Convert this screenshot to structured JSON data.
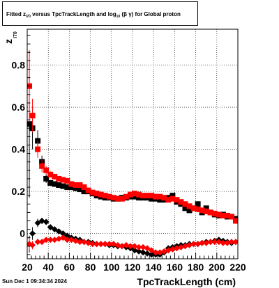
{
  "title": {
    "p1": "Fitted  z",
    "s1": "I70",
    "p2": "  versus TpcTrackLength and log",
    "s2": "10",
    "p3": " (β  γ) for Global proton"
  },
  "date_stamp": "Sun Dec  1 09:34:34 2024",
  "chart_data": {
    "type": "scatter",
    "title": "Fitted  zI70  versus TpcTrackLength and log10 (β  γ) for Global proton",
    "xlabel": "TpcTrackLength (cm)",
    "ylabel": "z",
    "ylabel_sub": "I70",
    "xlim": [
      20,
      220
    ],
    "ylim": [
      -0.12,
      0.97
    ],
    "grid": true,
    "x_ticks": [
      20,
      40,
      60,
      80,
      100,
      120,
      140,
      160,
      180,
      200,
      220
    ],
    "x_tick_labels": [
      "20",
      "40",
      "60",
      "80",
      "100",
      "120",
      "140",
      "160",
      "180",
      "200",
      "220"
    ],
    "y_ticks": [
      0,
      0.2,
      0.4,
      0.6,
      0.8
    ],
    "y_tick_labels": [
      "0",
      "0.2",
      "0.4",
      "0.6",
      "0.8"
    ],
    "series": [
      {
        "marker": "square",
        "color": "#000000",
        "x": [
          22,
          25,
          30,
          34,
          38,
          42,
          46,
          50,
          54,
          58,
          62,
          66,
          70,
          74,
          78,
          82,
          86,
          90,
          94,
          98,
          102,
          106,
          110,
          114,
          118,
          122,
          126,
          130,
          134,
          138,
          142,
          146,
          150,
          154,
          158,
          162,
          166,
          170,
          174,
          178,
          182,
          186,
          190,
          194,
          198,
          202,
          206,
          210,
          214,
          218
        ],
        "y": [
          0.52,
          0.5,
          0.44,
          0.34,
          0.26,
          0.24,
          0.235,
          0.23,
          0.225,
          0.22,
          0.22,
          0.215,
          0.21,
          0.2,
          0.2,
          0.19,
          0.18,
          0.175,
          0.17,
          0.17,
          0.165,
          0.165,
          0.17,
          0.17,
          0.175,
          0.175,
          0.17,
          0.17,
          0.17,
          0.165,
          0.165,
          0.16,
          0.16,
          0.17,
          0.18,
          0.15,
          0.14,
          0.12,
          0.11,
          0.12,
          0.14,
          0.1,
          0.12,
          0.1,
          0.09,
          0.085,
          0.09,
          0.08,
          0.08,
          0.07
        ],
        "yerr": [
          0.35,
          0.1,
          0.05,
          0.03,
          0.02,
          0.015,
          0.01,
          0.01,
          0.01,
          0.01,
          0.01,
          0.01,
          0.01,
          0.01,
          0.01,
          0.01,
          0.01,
          0.01,
          0.01,
          0.01,
          0.01,
          0.01,
          0.01,
          0.01,
          0.01,
          0.01,
          0.01,
          0.01,
          0.01,
          0.01,
          0.01,
          0.01,
          0.01,
          0.01,
          0.01,
          0.01,
          0.01,
          0.01,
          0.01,
          0.01,
          0.01,
          0.01,
          0.01,
          0.01,
          0.01,
          0.01,
          0.01,
          0.01,
          0.01,
          0.01
        ]
      },
      {
        "marker": "square",
        "color": "#ff0000",
        "x": [
          22,
          25,
          30,
          34,
          38,
          42,
          46,
          50,
          54,
          58,
          62,
          66,
          70,
          74,
          78,
          82,
          86,
          90,
          94,
          98,
          102,
          106,
          110,
          114,
          118,
          122,
          126,
          130,
          134,
          138,
          142,
          146,
          150,
          154,
          158,
          162,
          166,
          170,
          174,
          178,
          182,
          186,
          190,
          194,
          198,
          202,
          206,
          210,
          214,
          218
        ],
        "y": [
          0.7,
          0.56,
          0.4,
          0.32,
          0.3,
          0.28,
          0.27,
          0.26,
          0.255,
          0.25,
          0.235,
          0.23,
          0.23,
          0.22,
          0.205,
          0.195,
          0.19,
          0.185,
          0.18,
          0.175,
          0.17,
          0.165,
          0.165,
          0.175,
          0.185,
          0.19,
          0.185,
          0.18,
          0.18,
          0.18,
          0.175,
          0.175,
          0.17,
          0.16,
          0.165,
          0.16,
          0.15,
          0.14,
          0.13,
          0.12,
          0.115,
          0.11,
          0.105,
          0.1,
          0.095,
          0.09,
          0.085,
          0.085,
          0.08,
          0.06
        ],
        "yerr": [
          0.17,
          0.08,
          0.04,
          0.03,
          0.02,
          0.015,
          0.01,
          0.01,
          0.01,
          0.01,
          0.01,
          0.01,
          0.01,
          0.01,
          0.01,
          0.01,
          0.01,
          0.01,
          0.01,
          0.01,
          0.01,
          0.01,
          0.01,
          0.01,
          0.01,
          0.01,
          0.01,
          0.01,
          0.01,
          0.01,
          0.01,
          0.01,
          0.01,
          0.01,
          0.01,
          0.01,
          0.01,
          0.01,
          0.01,
          0.01,
          0.01,
          0.01,
          0.01,
          0.01,
          0.01,
          0.01,
          0.01,
          0.01,
          0.01,
          0.01
        ]
      },
      {
        "marker": "diamond",
        "color": "#000000",
        "x": [
          22,
          25,
          30,
          34,
          38,
          42,
          46,
          50,
          54,
          58,
          62,
          66,
          70,
          74,
          78,
          82,
          86,
          90,
          94,
          98,
          102,
          106,
          110,
          114,
          118,
          122,
          126,
          130,
          134,
          138,
          142,
          146,
          150,
          154,
          158,
          162,
          166,
          170,
          174,
          178,
          182,
          186,
          190,
          194,
          198,
          202,
          206,
          210,
          214,
          218
        ],
        "y": [
          -0.05,
          0.0,
          0.05,
          0.06,
          0.055,
          0.03,
          0.02,
          0.01,
          0.0,
          -0.01,
          -0.02,
          -0.025,
          -0.03,
          -0.04,
          -0.04,
          -0.045,
          -0.05,
          -0.05,
          -0.05,
          -0.055,
          -0.055,
          -0.06,
          -0.06,
          -0.065,
          -0.07,
          -0.08,
          -0.085,
          -0.09,
          -0.095,
          -0.1,
          -0.1,
          -0.1,
          -0.09,
          -0.07,
          -0.065,
          -0.06,
          -0.055,
          -0.055,
          -0.05,
          -0.05,
          -0.05,
          -0.045,
          -0.04,
          -0.04,
          -0.035,
          -0.03,
          -0.035,
          -0.04,
          -0.045,
          -0.04
        ],
        "yerr": [
          0.04,
          0.03,
          0.02,
          0.015,
          0.01,
          0.01,
          0.01,
          0.01,
          0.01,
          0.01,
          0.01,
          0.01,
          0.01,
          0.01,
          0.01,
          0.01,
          0.01,
          0.01,
          0.01,
          0.01,
          0.01,
          0.01,
          0.01,
          0.01,
          0.01,
          0.01,
          0.01,
          0.01,
          0.01,
          0.01,
          0.01,
          0.01,
          0.01,
          0.01,
          0.01,
          0.01,
          0.01,
          0.01,
          0.01,
          0.01,
          0.01,
          0.01,
          0.01,
          0.01,
          0.01,
          0.01,
          0.01,
          0.01,
          0.01,
          0.01
        ]
      },
      {
        "marker": "diamond",
        "color": "#ff0000",
        "x": [
          22,
          25,
          30,
          34,
          38,
          42,
          46,
          50,
          54,
          58,
          62,
          66,
          70,
          74,
          78,
          82,
          86,
          90,
          94,
          98,
          102,
          106,
          110,
          114,
          118,
          122,
          126,
          130,
          134,
          138,
          142,
          146,
          150,
          154,
          158,
          162,
          166,
          170,
          174,
          178,
          182,
          186,
          190,
          194,
          198,
          202,
          206,
          210,
          214,
          218
        ],
        "y": [
          -0.05,
          -0.055,
          -0.04,
          -0.04,
          -0.03,
          -0.03,
          -0.03,
          -0.025,
          -0.02,
          -0.03,
          -0.03,
          -0.035,
          -0.04,
          -0.04,
          -0.045,
          -0.05,
          -0.05,
          -0.05,
          -0.05,
          -0.05,
          -0.05,
          -0.055,
          -0.06,
          -0.055,
          -0.06,
          -0.06,
          -0.065,
          -0.065,
          -0.07,
          -0.08,
          -0.09,
          -0.09,
          -0.085,
          -0.08,
          -0.075,
          -0.07,
          -0.065,
          -0.06,
          -0.055,
          -0.05,
          -0.05,
          -0.045,
          -0.045,
          -0.04,
          -0.04,
          -0.04,
          -0.045,
          -0.045,
          -0.04,
          -0.04
        ],
        "yerr": [
          0.03,
          0.02,
          0.015,
          0.01,
          0.01,
          0.01,
          0.01,
          0.01,
          0.01,
          0.01,
          0.01,
          0.01,
          0.01,
          0.01,
          0.01,
          0.01,
          0.01,
          0.01,
          0.01,
          0.01,
          0.01,
          0.01,
          0.01,
          0.01,
          0.01,
          0.01,
          0.01,
          0.01,
          0.01,
          0.01,
          0.01,
          0.01,
          0.01,
          0.01,
          0.01,
          0.01,
          0.01,
          0.01,
          0.01,
          0.01,
          0.01,
          0.01,
          0.01,
          0.01,
          0.01,
          0.01,
          0.01,
          0.01,
          0.01,
          0.01
        ]
      }
    ]
  }
}
